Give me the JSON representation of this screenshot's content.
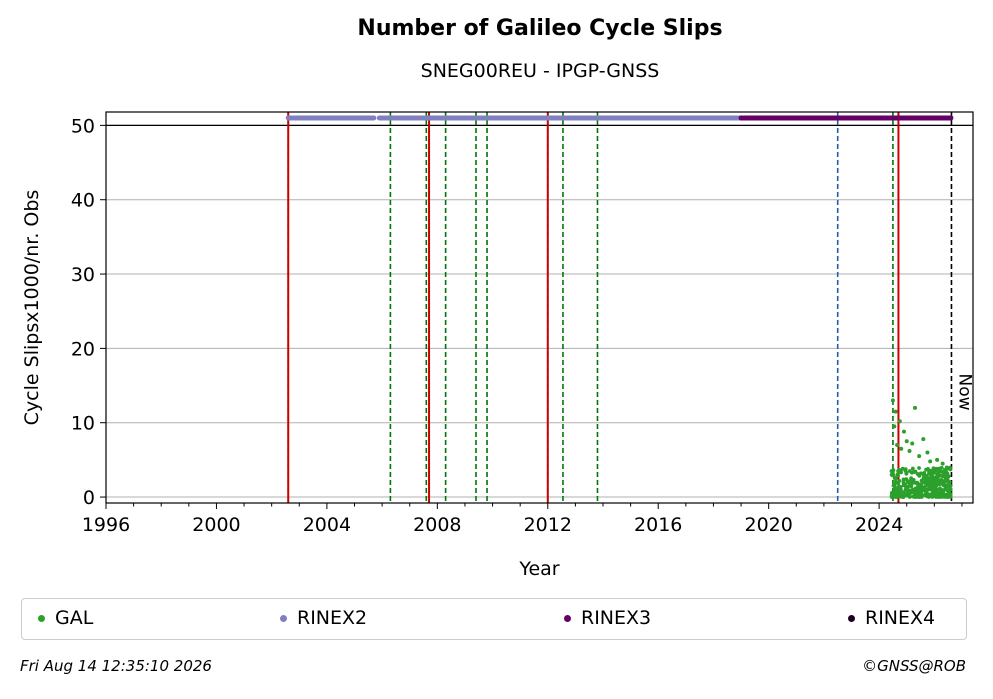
{
  "chart_data": {
    "type": "scatter",
    "title": "Number of Galileo Cycle Slips",
    "subtitle": "SNEG00REU - IPGP-GNSS",
    "xlabel": "Year",
    "ylabel": "Cycle Slipsx1000/nr. Obs",
    "xlim": [
      1996.0,
      2027.4
    ],
    "ylim": [
      -0.8,
      51.8
    ],
    "x_ticks": [
      1996,
      2000,
      2004,
      2008,
      2012,
      2016,
      2020,
      2024
    ],
    "y_ticks": [
      0,
      10,
      20,
      30,
      40,
      50
    ],
    "grid": "horizontal",
    "legend": "bottom",
    "now_label": "Now",
    "now_x": 2026.62,
    "colors": {
      "gal": "#2ca02c",
      "rinex2": "#8080c0",
      "rinex3": "#660066",
      "rinex4": "#1a0020",
      "red_line": "#cc0000",
      "green_line": "#007700",
      "blue_line": "#1f5fa8",
      "now_line": "#000000"
    },
    "vertical_lines": {
      "red": [
        2002.6,
        2007.7,
        2012.0,
        2024.7
      ],
      "green": [
        2002.6,
        2006.3,
        2007.6,
        2008.3,
        2009.4,
        2009.8,
        2012.0,
        2012.55,
        2013.8,
        2024.5
      ],
      "blue": [
        2022.5
      ]
    },
    "rinex_bands": [
      {
        "name": "RINEX2",
        "y": 51,
        "segments": [
          [
            2002.6,
            2005.7
          ],
          [
            2005.9,
            2019.0
          ]
        ]
      },
      {
        "name": "RINEX3",
        "y": 51,
        "segments": [
          [
            2019.0,
            2026.6
          ]
        ]
      }
    ],
    "series": [
      {
        "name": "GAL",
        "x_range": [
          2024.45,
          2026.6
        ],
        "points": [
          [
            2024.5,
            13.0
          ],
          [
            2024.6,
            11.5
          ],
          [
            2024.75,
            10.2
          ],
          [
            2024.9,
            8.8
          ],
          [
            2025.3,
            12.0
          ],
          [
            2025.75,
            6.0
          ],
          [
            2025.85,
            4.8
          ],
          [
            2026.1,
            5.0
          ],
          [
            2026.3,
            4.5
          ],
          [
            2025.0,
            7.5
          ],
          [
            2025.2,
            7.2
          ],
          [
            2025.6,
            7.8
          ],
          [
            2024.55,
            9.5
          ],
          [
            2024.8,
            6.5
          ],
          [
            2025.45,
            5.5
          ],
          [
            2026.0,
            3.8
          ],
          [
            2026.45,
            3.2
          ],
          [
            2025.9,
            2.8
          ],
          [
            2024.65,
            7.0
          ],
          [
            2025.1,
            6.2
          ]
        ],
        "baseline_band": [
          0,
          4
        ]
      },
      {
        "name": "RINEX2"
      },
      {
        "name": "RINEX3"
      },
      {
        "name": "RINEX4"
      }
    ]
  },
  "footer": {
    "date": "Fri Aug 14 12:35:10 2026",
    "copyright": "©GNSS@ROB"
  }
}
